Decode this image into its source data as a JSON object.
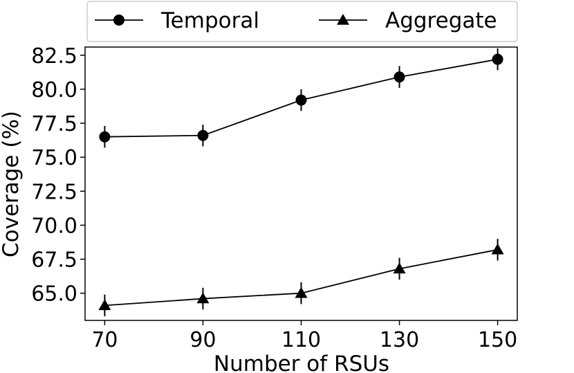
{
  "chart_data": {
    "type": "line",
    "title": "",
    "xlabel": "Number of RSUs",
    "ylabel": "Coverage (%)",
    "x": [
      70,
      90,
      110,
      130,
      150
    ],
    "x_tick_labels": [
      "70",
      "90",
      "110",
      "130",
      "150"
    ],
    "y_ticks": [
      65.0,
      67.5,
      70.0,
      72.5,
      75.0,
      77.5,
      80.0,
      82.5
    ],
    "y_tick_labels": [
      "65.0",
      "67.5",
      "70.0",
      "72.5",
      "75.0",
      "77.5",
      "80.0",
      "82.5"
    ],
    "xlim": [
      66,
      154
    ],
    "ylim": [
      63.0,
      83.1
    ],
    "grid": false,
    "legend_position": "top-outside",
    "series": [
      {
        "name": "Temporal",
        "marker": "circle",
        "color": "#000000",
        "values": [
          76.5,
          76.6,
          79.2,
          80.9,
          82.2
        ],
        "errors": [
          0.8,
          0.8,
          0.8,
          0.8,
          0.8
        ]
      },
      {
        "name": "Aggregate",
        "marker": "triangle",
        "color": "#000000",
        "values": [
          64.1,
          64.6,
          65.0,
          66.8,
          68.2
        ],
        "errors": [
          0.8,
          0.8,
          0.8,
          0.8,
          0.8
        ]
      }
    ]
  }
}
